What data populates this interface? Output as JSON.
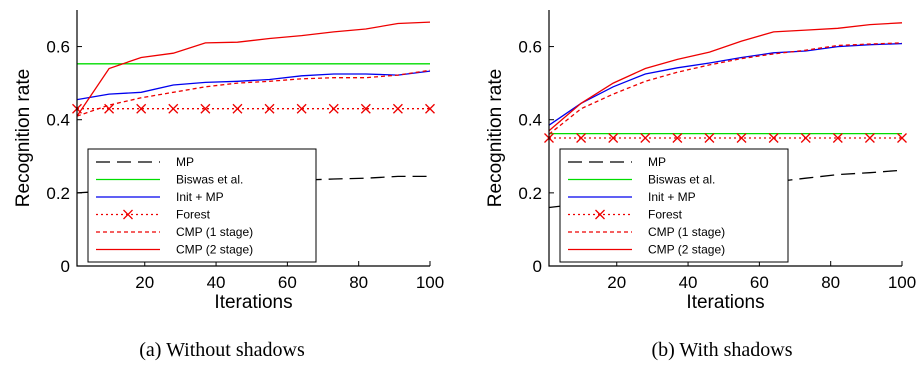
{
  "chart_data": [
    {
      "type": "line",
      "caption": "(a)  Without shadows",
      "xlabel": "Iterations",
      "ylabel": "Recognition rate",
      "xlim": [
        1,
        100
      ],
      "ylim": [
        0,
        0.7
      ],
      "xticks": [
        20,
        40,
        60,
        80,
        100
      ],
      "yticks": [
        0,
        0.2,
        0.4,
        0.6
      ],
      "grid": false,
      "legend_position": "bottom-left",
      "series": [
        {
          "name": "MP",
          "color": "#000000",
          "dash": "long",
          "marker": "none",
          "x": [
            1,
            10,
            19,
            28,
            37,
            46,
            55,
            64,
            73,
            82,
            91,
            100
          ],
          "y": [
            0.2,
            0.205,
            0.21,
            0.215,
            0.22,
            0.225,
            0.23,
            0.235,
            0.238,
            0.24,
            0.245,
            0.245
          ]
        },
        {
          "name": "Biswas et al.",
          "color": "#00dd00",
          "dash": "solid",
          "marker": "none",
          "x": [
            1,
            100
          ],
          "y": [
            0.553,
            0.553
          ]
        },
        {
          "name": "Init + MP",
          "color": "#0000ee",
          "dash": "solid",
          "marker": "none",
          "x": [
            1,
            10,
            19,
            28,
            37,
            46,
            55,
            64,
            73,
            82,
            91,
            100
          ],
          "y": [
            0.455,
            0.47,
            0.475,
            0.495,
            0.502,
            0.505,
            0.51,
            0.52,
            0.525,
            0.525,
            0.522,
            0.533
          ]
        },
        {
          "name": "Forest",
          "color": "#ee0000",
          "dash": "dotted",
          "marker": "x",
          "x": [
            1,
            10,
            19,
            28,
            37,
            46,
            55,
            64,
            73,
            82,
            91,
            100
          ],
          "y": [
            0.43,
            0.43,
            0.43,
            0.43,
            0.43,
            0.43,
            0.43,
            0.43,
            0.43,
            0.43,
            0.43,
            0.43
          ]
        },
        {
          "name": "CMP (1 stage)",
          "color": "#ee0000",
          "dash": "dashed",
          "marker": "none",
          "x": [
            1,
            10,
            19,
            28,
            37,
            46,
            55,
            64,
            73,
            82,
            91,
            100
          ],
          "y": [
            0.41,
            0.44,
            0.46,
            0.475,
            0.49,
            0.5,
            0.505,
            0.512,
            0.515,
            0.515,
            0.522,
            0.535
          ]
        },
        {
          "name": "CMP (2 stage)",
          "color": "#ee0000",
          "dash": "solid",
          "marker": "none",
          "x": [
            1,
            10,
            19,
            28,
            37,
            46,
            55,
            64,
            73,
            82,
            91,
            100
          ],
          "y": [
            0.41,
            0.54,
            0.57,
            0.582,
            0.61,
            0.612,
            0.622,
            0.63,
            0.64,
            0.648,
            0.663,
            0.667
          ]
        }
      ]
    },
    {
      "type": "line",
      "caption": "(b)  With shadows",
      "xlabel": "Iterations",
      "ylabel": "Recognition rate",
      "xlim": [
        1,
        100
      ],
      "ylim": [
        0,
        0.7
      ],
      "xticks": [
        20,
        40,
        60,
        80,
        100
      ],
      "yticks": [
        0,
        0.2,
        0.4,
        0.6
      ],
      "grid": false,
      "legend_position": "bottom-left",
      "series": [
        {
          "name": "MP",
          "color": "#000000",
          "dash": "long",
          "marker": "none",
          "x": [
            1,
            10,
            19,
            28,
            37,
            46,
            55,
            64,
            73,
            82,
            91,
            100
          ],
          "y": [
            0.16,
            0.17,
            0.18,
            0.19,
            0.2,
            0.21,
            0.22,
            0.23,
            0.24,
            0.25,
            0.255,
            0.262
          ]
        },
        {
          "name": "Biswas et al.",
          "color": "#00dd00",
          "dash": "solid",
          "marker": "none",
          "x": [
            1,
            100
          ],
          "y": [
            0.362,
            0.362
          ]
        },
        {
          "name": "Init + MP",
          "color": "#0000ee",
          "dash": "solid",
          "marker": "none",
          "x": [
            1,
            10,
            19,
            28,
            37,
            46,
            55,
            64,
            73,
            82,
            91,
            100
          ],
          "y": [
            0.385,
            0.445,
            0.49,
            0.525,
            0.542,
            0.555,
            0.57,
            0.583,
            0.588,
            0.6,
            0.605,
            0.608
          ]
        },
        {
          "name": "Forest",
          "color": "#ee0000",
          "dash": "dotted",
          "marker": "x",
          "x": [
            1,
            10,
            19,
            28,
            37,
            46,
            55,
            64,
            73,
            82,
            91,
            100
          ],
          "y": [
            0.35,
            0.35,
            0.35,
            0.35,
            0.35,
            0.35,
            0.35,
            0.35,
            0.35,
            0.35,
            0.35,
            0.35
          ]
        },
        {
          "name": "CMP (1 stage)",
          "color": "#ee0000",
          "dash": "dashed",
          "marker": "none",
          "x": [
            1,
            10,
            19,
            28,
            37,
            46,
            55,
            64,
            73,
            82,
            91,
            100
          ],
          "y": [
            0.36,
            0.43,
            0.47,
            0.505,
            0.53,
            0.55,
            0.567,
            0.58,
            0.59,
            0.603,
            0.607,
            0.61
          ]
        },
        {
          "name": "CMP (2 stage)",
          "color": "#ee0000",
          "dash": "solid",
          "marker": "none",
          "x": [
            1,
            10,
            19,
            28,
            37,
            46,
            55,
            64,
            73,
            82,
            91,
            100
          ],
          "y": [
            0.37,
            0.445,
            0.5,
            0.54,
            0.565,
            0.585,
            0.615,
            0.64,
            0.645,
            0.65,
            0.66,
            0.665
          ]
        }
      ]
    }
  ]
}
